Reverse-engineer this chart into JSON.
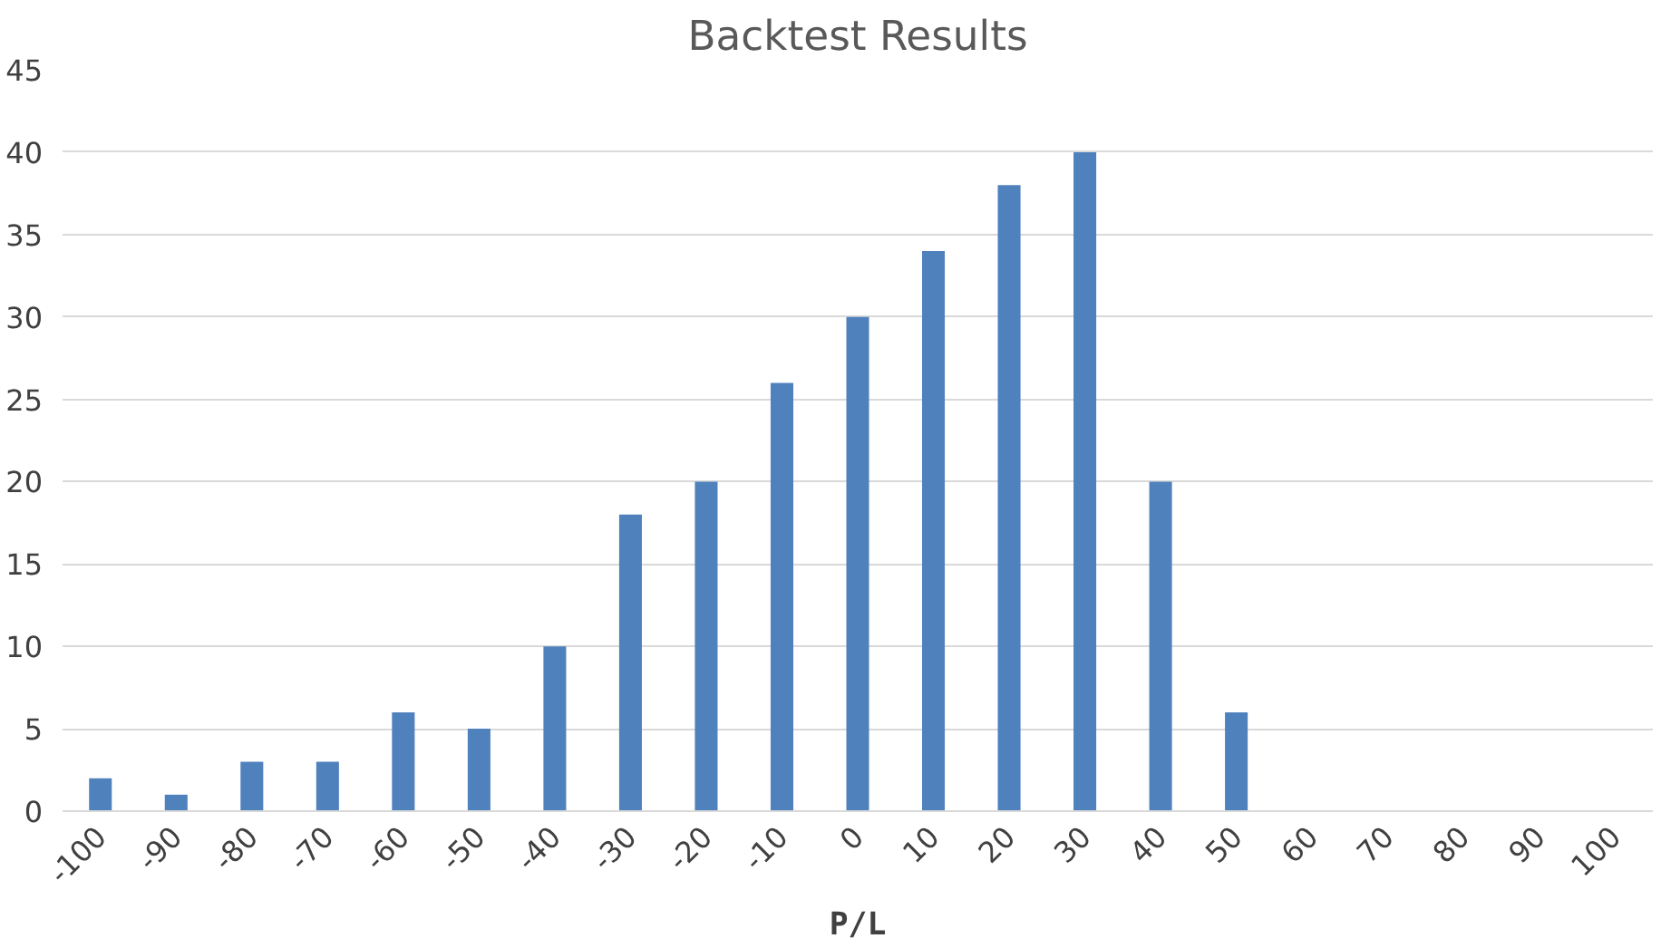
{
  "chart_data": {
    "type": "bar",
    "title": "Backtest Results",
    "xlabel": "P/L",
    "categories": [
      "-100",
      "-90",
      "-80",
      "-70",
      "-60",
      "-50",
      "-40",
      "-30",
      "-20",
      "-10",
      "0",
      "10",
      "20",
      "30",
      "40",
      "50",
      "60",
      "70",
      "80",
      "90",
      "100"
    ],
    "values": [
      2,
      1,
      3,
      3,
      6,
      5,
      10,
      18,
      20,
      26,
      30,
      34,
      38,
      40,
      20,
      6,
      0,
      0,
      0,
      0,
      0
    ],
    "color": "#4f81bd",
    "ylim": [
      0,
      45
    ],
    "yticks": [
      0,
      5,
      10,
      15,
      20,
      25,
      30,
      35,
      40,
      45
    ],
    "grid": "y"
  }
}
